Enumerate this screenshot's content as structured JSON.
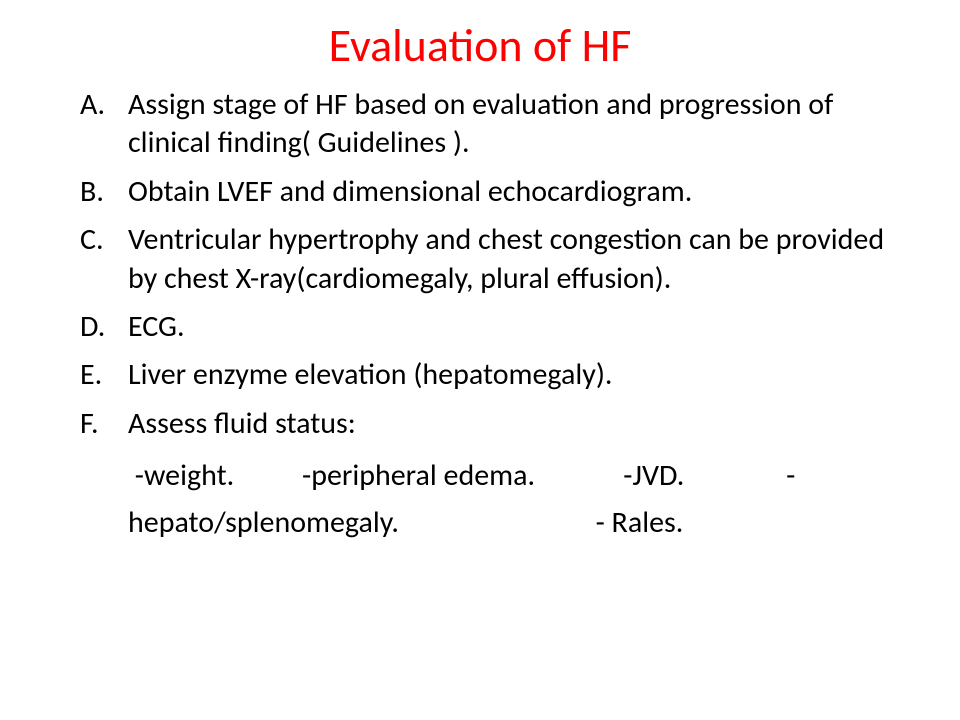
{
  "slide": {
    "title": "Evaluation of HF",
    "title_color": "#ff0000",
    "body_color": "#000000",
    "items": [
      {
        "marker": "A.",
        "text": "Assign stage of HF based on evaluation and progression of clinical finding( Guidelines )."
      },
      {
        "marker": "B.",
        "text": "Obtain LVEF and dimensional echocardiogram."
      },
      {
        "marker": "C.",
        "text": "Ventricular hypertrophy and chest congestion can be provided by chest X-ray(cardiomegaly, plural effusion)."
      },
      {
        "marker": "D.",
        "text": "ECG."
      },
      {
        "marker": "E.",
        "text": "Liver enzyme elevation (hepatomegaly)."
      },
      {
        "marker": "F.",
        "text": "Assess fluid status:"
      }
    ],
    "sub_text": " -weight.          -peripheral edema.             -JVD.               -hepato/splenomegaly.                             - Rales."
  }
}
